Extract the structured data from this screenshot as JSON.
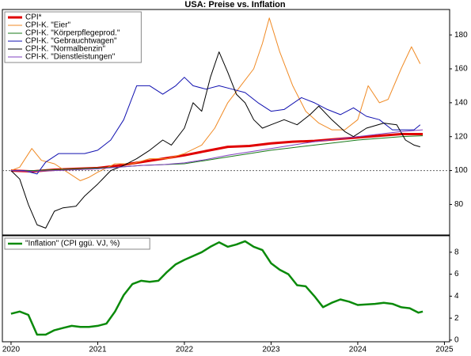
{
  "chart_data": [
    {
      "type": "line",
      "title": "USA: Preise vs. Inflation",
      "xlim": [
        2019.9,
        2025.06
      ],
      "ylim": [
        62,
        195
      ],
      "yticks": [
        80,
        100,
        120,
        140,
        160,
        180
      ],
      "hline": 100,
      "legend": "upper-left",
      "series": [
        {
          "name": "CPI*",
          "color": "#e00000",
          "width": 3,
          "x": [
            2020,
            2020.25,
            2020.5,
            2020.75,
            2021,
            2021.25,
            2021.5,
            2021.75,
            2022,
            2022.25,
            2022.5,
            2022.75,
            2023,
            2023.25,
            2023.5,
            2023.75,
            2024,
            2024.25,
            2024.5,
            2024.75
          ],
          "values": [
            100,
            99.5,
            100.5,
            101,
            101.5,
            103,
            105,
            107,
            109,
            111.5,
            114,
            114.5,
            116,
            117,
            117.5,
            118.5,
            119.5,
            120.5,
            121.5,
            121.5
          ]
        },
        {
          "name": "CPI-K. \"Eier\"",
          "color": "#f08a24",
          "width": 1,
          "x": [
            2020,
            2020.1,
            2020.24,
            2020.35,
            2020.5,
            2020.65,
            2020.8,
            2020.9,
            2021,
            2021.2,
            2021.4,
            2021.6,
            2021.8,
            2022,
            2022.2,
            2022.35,
            2022.5,
            2022.65,
            2022.8,
            2022.9,
            2022.98,
            2023.1,
            2023.25,
            2023.4,
            2023.55,
            2023.7,
            2023.85,
            2024,
            2024.12,
            2024.25,
            2024.35,
            2024.5,
            2024.62,
            2024.72
          ],
          "values": [
            100,
            102,
            113,
            106,
            104,
            99,
            94,
            96,
            99,
            104,
            104,
            107,
            107,
            110,
            115,
            125,
            140,
            150,
            160,
            175,
            190,
            170,
            150,
            135,
            128,
            124,
            124,
            130,
            150,
            140,
            142,
            160,
            173,
            163
          ]
        },
        {
          "name": "CPI-K. \"Körperpflegeprod.\"",
          "color": "#1a7a1a",
          "width": 1,
          "x": [
            2020,
            2020.25,
            2020.5,
            2020.75,
            2021,
            2021.25,
            2021.5,
            2021.75,
            2022,
            2022.25,
            2022.5,
            2022.75,
            2023,
            2023.25,
            2023.5,
            2023.75,
            2024,
            2024.25,
            2024.5,
            2024.75
          ],
          "values": [
            100,
            100,
            100.5,
            101,
            101.5,
            102,
            103,
            103.5,
            104,
            106,
            108,
            110,
            112,
            113.5,
            115,
            116.5,
            118,
            119,
            120,
            120.5
          ]
        },
        {
          "name": "CPI-K. \"Gebrauchtwagen\"",
          "color": "#1010b0",
          "width": 1,
          "x": [
            2020,
            2020.15,
            2020.3,
            2020.4,
            2020.55,
            2020.7,
            2020.85,
            2021,
            2021.15,
            2021.3,
            2021.45,
            2021.6,
            2021.75,
            2021.9,
            2022,
            2022.1,
            2022.25,
            2022.4,
            2022.55,
            2022.7,
            2022.85,
            2023,
            2023.15,
            2023.35,
            2023.5,
            2023.65,
            2023.8,
            2023.95,
            2024.1,
            2024.25,
            2024.4,
            2024.55,
            2024.65,
            2024.72
          ],
          "values": [
            100,
            100,
            98,
            105,
            110,
            110,
            110,
            112,
            118,
            130,
            150,
            150,
            145,
            150,
            155,
            150,
            148,
            150,
            148,
            146,
            140,
            135,
            136,
            143,
            140,
            136,
            133,
            137,
            132,
            130,
            124,
            124,
            124,
            127
          ]
        },
        {
          "name": "CPI-K. \"Normalbenzin\"",
          "color": "#000000",
          "width": 1,
          "x": [
            2020,
            2020.1,
            2020.2,
            2020.3,
            2020.4,
            2020.5,
            2020.6,
            2020.75,
            2020.85,
            2021,
            2021.15,
            2021.3,
            2021.45,
            2021.6,
            2021.75,
            2021.85,
            2022,
            2022.1,
            2022.2,
            2022.3,
            2022.4,
            2022.5,
            2022.6,
            2022.7,
            2022.8,
            2022.9,
            2023,
            2023.15,
            2023.3,
            2023.45,
            2023.55,
            2023.7,
            2023.85,
            2023.95,
            2024.1,
            2024.3,
            2024.45,
            2024.55,
            2024.65,
            2024.72
          ],
          "values": [
            100,
            95,
            80,
            68,
            66,
            76,
            78,
            79,
            85,
            92,
            100,
            103,
            107,
            112,
            118,
            115,
            125,
            140,
            135,
            155,
            170,
            158,
            145,
            140,
            130,
            125,
            127,
            130,
            127,
            133,
            138,
            130,
            123,
            120,
            125,
            128,
            127,
            118,
            115,
            114
          ]
        },
        {
          "name": "CPI-K. \"Dienstleistungen\"",
          "color": "#8040c0",
          "width": 1,
          "x": [
            2020,
            2020.25,
            2020.5,
            2020.75,
            2021,
            2021.25,
            2021.5,
            2021.75,
            2022,
            2022.25,
            2022.5,
            2022.75,
            2023,
            2023.25,
            2023.5,
            2023.75,
            2024,
            2024.25,
            2024.5,
            2024.75
          ],
          "values": [
            100,
            99.5,
            100,
            100.5,
            101,
            102,
            103,
            103.5,
            104.5,
            106.5,
            109,
            111,
            113,
            115,
            117,
            118.5,
            120,
            121.5,
            123,
            124
          ]
        }
      ]
    },
    {
      "type": "line",
      "xlim": [
        2019.9,
        2025.06
      ],
      "xticks": [
        2020,
        2021,
        2022,
        2023,
        2024,
        2025
      ],
      "ylim": [
        -0.15,
        9.5
      ],
      "yticks": [
        0,
        2,
        4,
        6,
        8
      ],
      "legend": "upper-left",
      "series": [
        {
          "name": "\"Inflation\" (CPI ggü. VJ, %)",
          "color": "#0a8a0a",
          "width": 2.5,
          "x": [
            2020,
            2020.1,
            2020.2,
            2020.3,
            2020.4,
            2020.5,
            2020.6,
            2020.7,
            2020.8,
            2020.9,
            2021,
            2021.1,
            2021.2,
            2021.3,
            2021.4,
            2021.5,
            2021.6,
            2021.7,
            2021.8,
            2021.9,
            2022,
            2022.2,
            2022.3,
            2022.4,
            2022.5,
            2022.6,
            2022.7,
            2022.8,
            2022.9,
            2023,
            2023.1,
            2023.2,
            2023.3,
            2023.4,
            2023.5,
            2023.6,
            2023.7,
            2023.8,
            2023.9,
            2024,
            2024.2,
            2024.3,
            2024.4,
            2024.5,
            2024.6,
            2024.7,
            2024.75
          ],
          "values": [
            2.4,
            2.6,
            2.3,
            0.5,
            0.5,
            0.9,
            1.1,
            1.3,
            1.2,
            1.2,
            1.3,
            1.5,
            2.6,
            4.1,
            5.1,
            5.4,
            5.3,
            5.4,
            6.2,
            6.9,
            7.3,
            8.0,
            8.5,
            8.9,
            8.5,
            8.7,
            9.0,
            8.5,
            8.2,
            7.0,
            6.4,
            6.0,
            5.0,
            4.9,
            4.0,
            3.0,
            3.4,
            3.7,
            3.5,
            3.2,
            3.3,
            3.4,
            3.3,
            3.0,
            2.9,
            2.5,
            2.6
          ]
        }
      ]
    }
  ]
}
